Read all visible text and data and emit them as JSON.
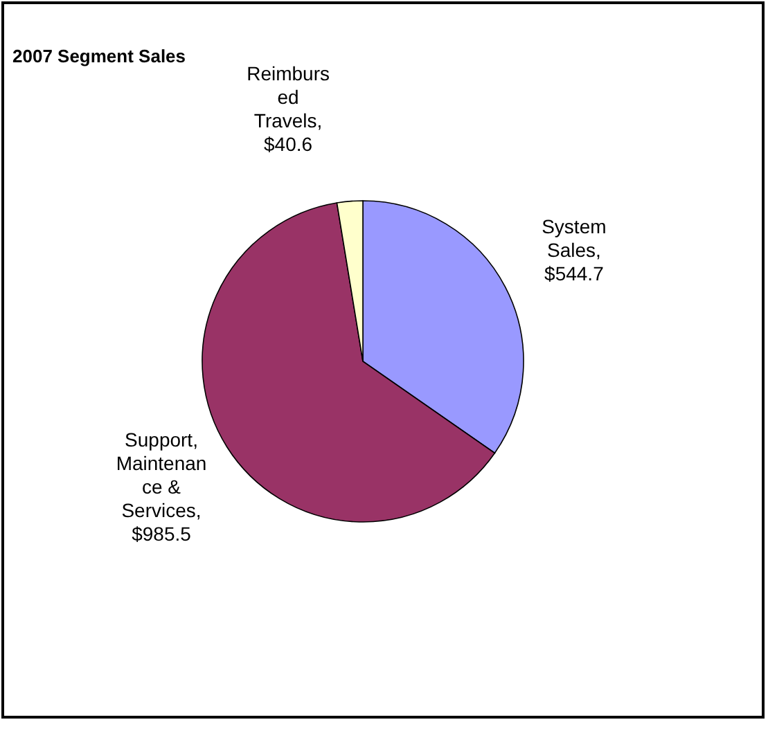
{
  "chart_data": {
    "type": "pie",
    "title": "2007 Segment Sales",
    "categories": [
      "System Sales",
      "Support, Maintenance & Services",
      "Reimbursed Travels"
    ],
    "values": [
      544.7,
      985.5,
      40.6
    ],
    "colors": [
      "#9999ff",
      "#993366",
      "#ffffcc"
    ],
    "value_labels": [
      ", $544.7",
      ", $985.5",
      ", $40.6"
    ]
  }
}
